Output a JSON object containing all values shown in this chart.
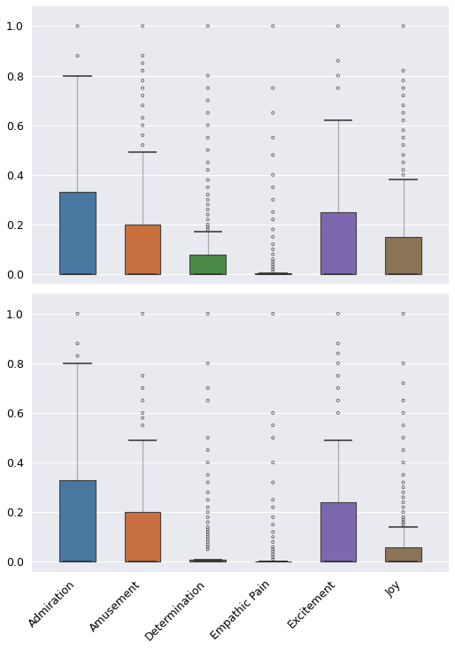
{
  "categories": [
    "Admiration",
    "Amusement",
    "Determination",
    "Empathic Pain",
    "Excitement",
    "Joy"
  ],
  "colors": [
    "#4878a0",
    "#c87040",
    "#4a8a46",
    "#c0c0c0",
    "#7b68ae",
    "#8b7355"
  ],
  "background_color": "#e8eaf0",
  "subplot1": {
    "boxes": [
      {
        "q1": 0.0,
        "median": 0.0,
        "q3": 0.33,
        "whisker_low": 0.0,
        "whisker_high": 0.8,
        "outliers": [
          1.0,
          0.88
        ]
      },
      {
        "q1": 0.0,
        "median": 0.0,
        "q3": 0.2,
        "whisker_low": 0.0,
        "whisker_high": 0.49,
        "outliers": [
          1.0,
          0.88,
          0.85,
          0.82,
          0.78,
          0.75,
          0.72,
          0.68,
          0.63,
          0.6,
          0.56,
          0.52
        ]
      },
      {
        "q1": 0.0,
        "median": 0.0,
        "q3": 0.08,
        "whisker_low": 0.0,
        "whisker_high": 0.17,
        "outliers": [
          1.0,
          0.8,
          0.75,
          0.7,
          0.65,
          0.6,
          0.55,
          0.5,
          0.45,
          0.42,
          0.38,
          0.35,
          0.32,
          0.3,
          0.28,
          0.26,
          0.24,
          0.22,
          0.2,
          0.19,
          0.18
        ]
      },
      {
        "q1": 0.0,
        "median": 0.0,
        "q3": 0.003,
        "whisker_low": 0.0,
        "whisker_high": 0.003,
        "outliers": [
          1.0,
          0.75,
          0.65,
          0.55,
          0.48,
          0.4,
          0.35,
          0.3,
          0.25,
          0.22,
          0.18,
          0.15,
          0.12,
          0.1,
          0.08,
          0.06,
          0.05,
          0.04,
          0.03,
          0.02,
          0.01
        ]
      },
      {
        "q1": 0.0,
        "median": 0.0,
        "q3": 0.25,
        "whisker_low": 0.0,
        "whisker_high": 0.62,
        "outliers": [
          1.0,
          0.86,
          0.8,
          0.75
        ]
      },
      {
        "q1": 0.0,
        "median": 0.0,
        "q3": 0.15,
        "whisker_low": 0.0,
        "whisker_high": 0.38,
        "outliers": [
          1.0,
          0.82,
          0.78,
          0.75,
          0.72,
          0.68,
          0.65,
          0.62,
          0.58,
          0.55,
          0.52,
          0.48,
          0.45,
          0.42,
          0.4
        ]
      }
    ]
  },
  "subplot2": {
    "boxes": [
      {
        "q1": 0.0,
        "median": 0.0,
        "q3": 0.33,
        "whisker_low": 0.0,
        "whisker_high": 0.8,
        "outliers": [
          1.0,
          0.88,
          0.83
        ]
      },
      {
        "q1": 0.0,
        "median": 0.0,
        "q3": 0.2,
        "whisker_low": 0.0,
        "whisker_high": 0.49,
        "outliers": [
          1.0,
          0.75,
          0.7,
          0.65,
          0.6,
          0.58,
          0.55
        ]
      },
      {
        "q1": 0.0,
        "median": 0.0,
        "q3": 0.01,
        "whisker_low": 0.0,
        "whisker_high": 0.01,
        "outliers": [
          1.0,
          0.8,
          0.7,
          0.65,
          0.5,
          0.45,
          0.4,
          0.35,
          0.32,
          0.28,
          0.25,
          0.22,
          0.2,
          0.18,
          0.16,
          0.14,
          0.13,
          0.12,
          0.11,
          0.1,
          0.09,
          0.08,
          0.07,
          0.06,
          0.05
        ]
      },
      {
        "q1": 0.0,
        "median": 0.0,
        "q3": 0.003,
        "whisker_low": 0.0,
        "whisker_high": 0.003,
        "outliers": [
          1.0,
          0.6,
          0.55,
          0.5,
          0.4,
          0.32,
          0.25,
          0.22,
          0.18,
          0.15,
          0.12,
          0.1,
          0.08,
          0.06,
          0.05,
          0.04,
          0.03,
          0.02,
          0.01
        ]
      },
      {
        "q1": 0.0,
        "median": 0.0,
        "q3": 0.24,
        "whisker_low": 0.0,
        "whisker_high": 0.49,
        "outliers": [
          1.0,
          0.88,
          0.84,
          0.8,
          0.75,
          0.7,
          0.65,
          0.6
        ]
      },
      {
        "q1": 0.0,
        "median": 0.0,
        "q3": 0.06,
        "whisker_low": 0.0,
        "whisker_high": 0.14,
        "outliers": [
          1.0,
          0.8,
          0.72,
          0.65,
          0.6,
          0.55,
          0.5,
          0.45,
          0.4,
          0.35,
          0.32,
          0.3,
          0.28,
          0.26,
          0.24,
          0.22,
          0.2,
          0.18,
          0.17,
          0.16,
          0.15
        ]
      }
    ]
  }
}
